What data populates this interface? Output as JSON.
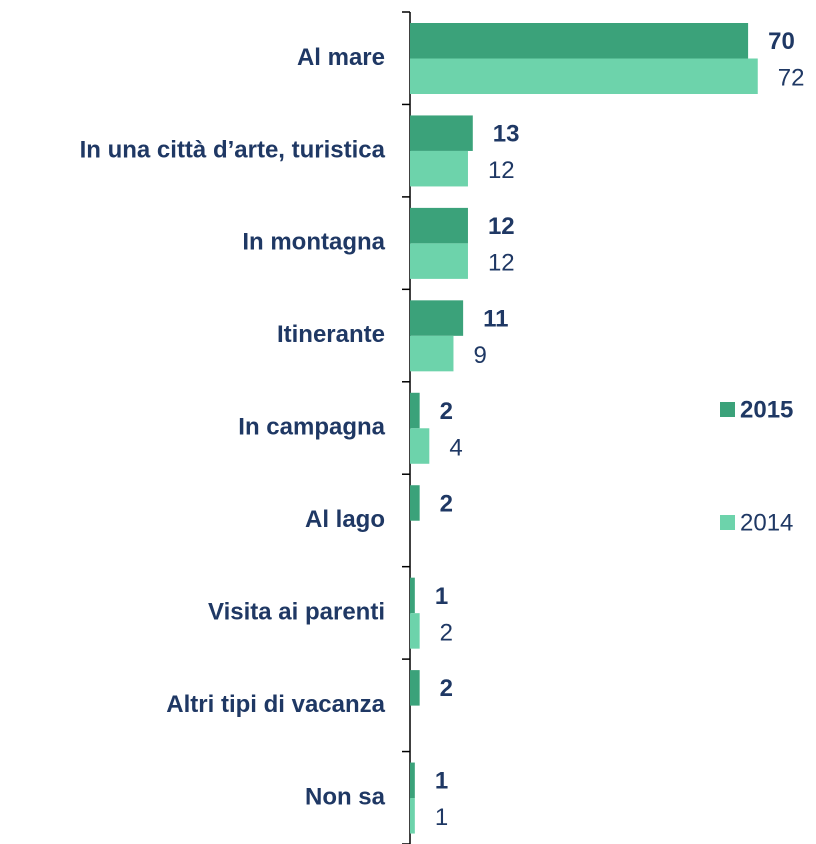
{
  "chart_data": {
    "type": "bar",
    "orientation": "horizontal",
    "categories": [
      "Al mare",
      "In una città d’arte, turistica",
      "In montagna",
      "Itinerante",
      "In campagna",
      "Al lago",
      "Visita ai parenti",
      "Altri tipi di vacanza",
      "Non sa"
    ],
    "series": [
      {
        "name": "2015",
        "color": "#3ba27a",
        "values": [
          70,
          13,
          12,
          11,
          2,
          2,
          1,
          2,
          1
        ]
      },
      {
        "name": "2014",
        "color": "#6dd3ab",
        "values": [
          72,
          12,
          12,
          9,
          4,
          null,
          2,
          null,
          1
        ]
      }
    ]
  }
}
